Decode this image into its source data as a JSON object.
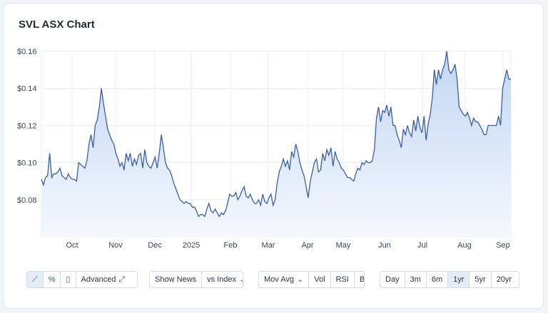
{
  "title": "SVL ASX Chart",
  "colors": {
    "line": "#3a5fa0",
    "fill_top": "#c2d6f3",
    "fill_bottom": "#f4f8fd",
    "grid": "#e8edf3"
  },
  "chart_data": {
    "type": "area",
    "title": "SVL ASX Chart",
    "y_ticks": [
      "$0.16",
      "$0.14",
      "$0.12",
      "$0.10",
      "$0.08"
    ],
    "y_tick_values": [
      0.16,
      0.14,
      0.12,
      0.1,
      0.08
    ],
    "ylim": [
      0.06,
      0.16
    ],
    "x_ticks": [
      "Oct",
      "Nov",
      "Dec",
      "2025",
      "Feb",
      "Mar",
      "Apr",
      "May",
      "Jun",
      "Jul",
      "Aug",
      "Sep"
    ],
    "grid": true,
    "series": [
      {
        "values": [
          0.091,
          0.088,
          0.092,
          0.093,
          0.105,
          0.092,
          0.094,
          0.094,
          0.095,
          0.097,
          0.093,
          0.092,
          0.091,
          0.094,
          0.092,
          0.091,
          0.091,
          0.09,
          0.1,
          0.099,
          0.098,
          0.097,
          0.101,
          0.11,
          0.115,
          0.108,
          0.12,
          0.123,
          0.13,
          0.14,
          0.132,
          0.125,
          0.118,
          0.115,
          0.112,
          0.11,
          0.105,
          0.102,
          0.098,
          0.1,
          0.096,
          0.105,
          0.101,
          0.105,
          0.098,
          0.102,
          0.099,
          0.104,
          0.105,
          0.097,
          0.107,
          0.1,
          0.098,
          0.097,
          0.1,
          0.103,
          0.097,
          0.105,
          0.115,
          0.108,
          0.1,
          0.097,
          0.096,
          0.093,
          0.089,
          0.086,
          0.083,
          0.08,
          0.079,
          0.078,
          0.079,
          0.078,
          0.078,
          0.076,
          0.076,
          0.074,
          0.071,
          0.072,
          0.072,
          0.071,
          0.075,
          0.078,
          0.074,
          0.073,
          0.075,
          0.073,
          0.071,
          0.073,
          0.072,
          0.074,
          0.078,
          0.083,
          0.082,
          0.082,
          0.084,
          0.08,
          0.082,
          0.085,
          0.087,
          0.082,
          0.081,
          0.083,
          0.08,
          0.078,
          0.078,
          0.08,
          0.077,
          0.083,
          0.079,
          0.078,
          0.081,
          0.083,
          0.077,
          0.08,
          0.089,
          0.095,
          0.098,
          0.102,
          0.098,
          0.101,
          0.096,
          0.106,
          0.103,
          0.11,
          0.106,
          0.1,
          0.096,
          0.093,
          0.087,
          0.081,
          0.09,
          0.095,
          0.1,
          0.102,
          0.095,
          0.096,
          0.105,
          0.101,
          0.107,
          0.104,
          0.108,
          0.098,
          0.106,
          0.102,
          0.1,
          0.097,
          0.096,
          0.094,
          0.092,
          0.092,
          0.091,
          0.09,
          0.094,
          0.097,
          0.096,
          0.1,
          0.099,
          0.101,
          0.1,
          0.1,
          0.101,
          0.107,
          0.124,
          0.13,
          0.122,
          0.128,
          0.127,
          0.131,
          0.125,
          0.13,
          0.12,
          0.12,
          0.115,
          0.112,
          0.108,
          0.118,
          0.115,
          0.12,
          0.116,
          0.114,
          0.123,
          0.117,
          0.125,
          0.119,
          0.116,
          0.125,
          0.112,
          0.121,
          0.126,
          0.135,
          0.15,
          0.142,
          0.15,
          0.145,
          0.15,
          0.153,
          0.16,
          0.15,
          0.148,
          0.15,
          0.153,
          0.145,
          0.13,
          0.128,
          0.126,
          0.125,
          0.127,
          0.124,
          0.12,
          0.124,
          0.122,
          0.122,
          0.12,
          0.118,
          0.115,
          0.115,
          0.12,
          0.12,
          0.12,
          0.12,
          0.12,
          0.125,
          0.12,
          0.14,
          0.145,
          0.15,
          0.145,
          0.145
        ]
      }
    ]
  },
  "toolbar": {
    "chart_types": [
      {
        "icon": "line-chart-icon",
        "glyph": "⟋",
        "active": true
      },
      {
        "icon": "percent-icon",
        "glyph": "%",
        "active": false
      },
      {
        "icon": "candlestick-icon",
        "glyph": "▯",
        "active": false
      }
    ],
    "advanced_label": "Advanced",
    "show_news_label": "Show News",
    "vs_index_label": "vs Index",
    "mov_avg_label": "Mov Avg",
    "vol_label": "Vol",
    "rsi_label": "RSI",
    "bb_label": "BB",
    "ranges": [
      "Day",
      "3m",
      "6m",
      "1yr",
      "5yr",
      "20yr"
    ],
    "active_range": "1yr"
  }
}
